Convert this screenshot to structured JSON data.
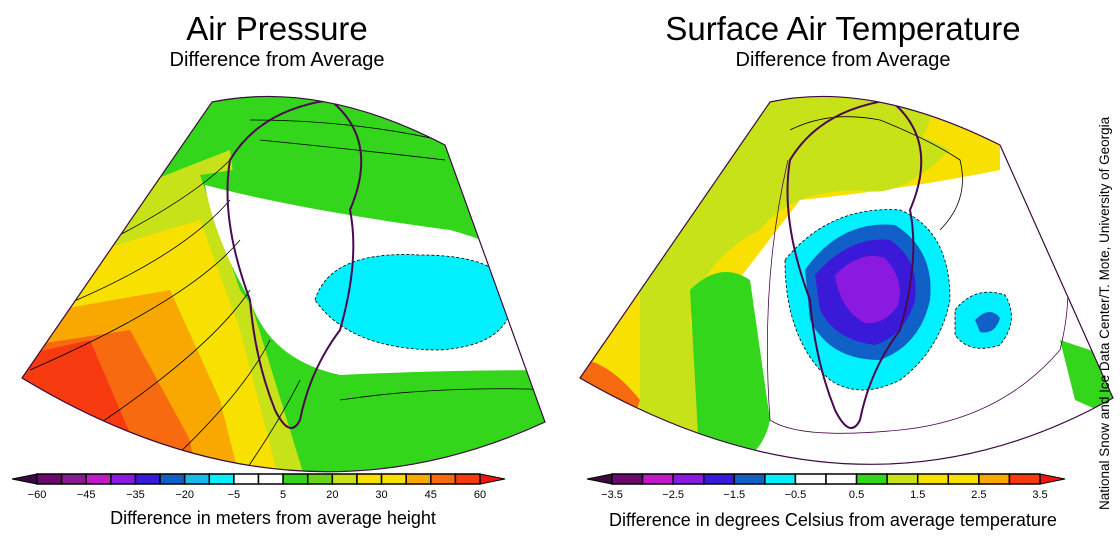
{
  "panels": [
    {
      "title": "Air Pressure",
      "subtitle": "Difference from Average",
      "colorbar": {
        "colors": [
          "#6a0a6e",
          "#8b1a8e",
          "#c21ac9",
          "#8a1ae0",
          "#3a1ad8",
          "#1060c8",
          "#1ab8e8",
          "#00f0ff",
          "#ffffff",
          "#ffffff",
          "#33d61a",
          "#66d61a",
          "#c8e21a",
          "#f8e000",
          "#f8e000",
          "#f8a800",
          "#f86a10",
          "#f83a10"
        ],
        "under_color": "#3a0a3e",
        "over_color": "#f81010",
        "tick_labels": [
          "−60",
          "−45",
          "−35",
          "−20",
          "−5",
          "5",
          "20",
          "30",
          "45",
          "60"
        ],
        "label": "Difference in meters from average height"
      }
    },
    {
      "title": "Surface Air Temperature",
      "subtitle": "Difference from Average",
      "colorbar": {
        "colors": [
          "#6a0a6e",
          "#c21ac9",
          "#8a1ae0",
          "#3a1ad8",
          "#1060c8",
          "#00f0ff",
          "#ffffff",
          "#ffffff",
          "#33d61a",
          "#c8e21a",
          "#f8e000",
          "#f8e000",
          "#f8a800",
          "#f83a10"
        ],
        "under_color": "#3a0a3e",
        "over_color": "#f81010",
        "tick_labels": [
          "−3.5",
          "−2.5",
          "−1.5",
          "−0.5",
          "0.5",
          "1.5",
          "2.5",
          "3.5"
        ],
        "label": "Difference in degrees Celsius from average temperature"
      }
    }
  ],
  "credit": "National Snow and Ice Data Center/T. Mote, University of Georgia"
}
